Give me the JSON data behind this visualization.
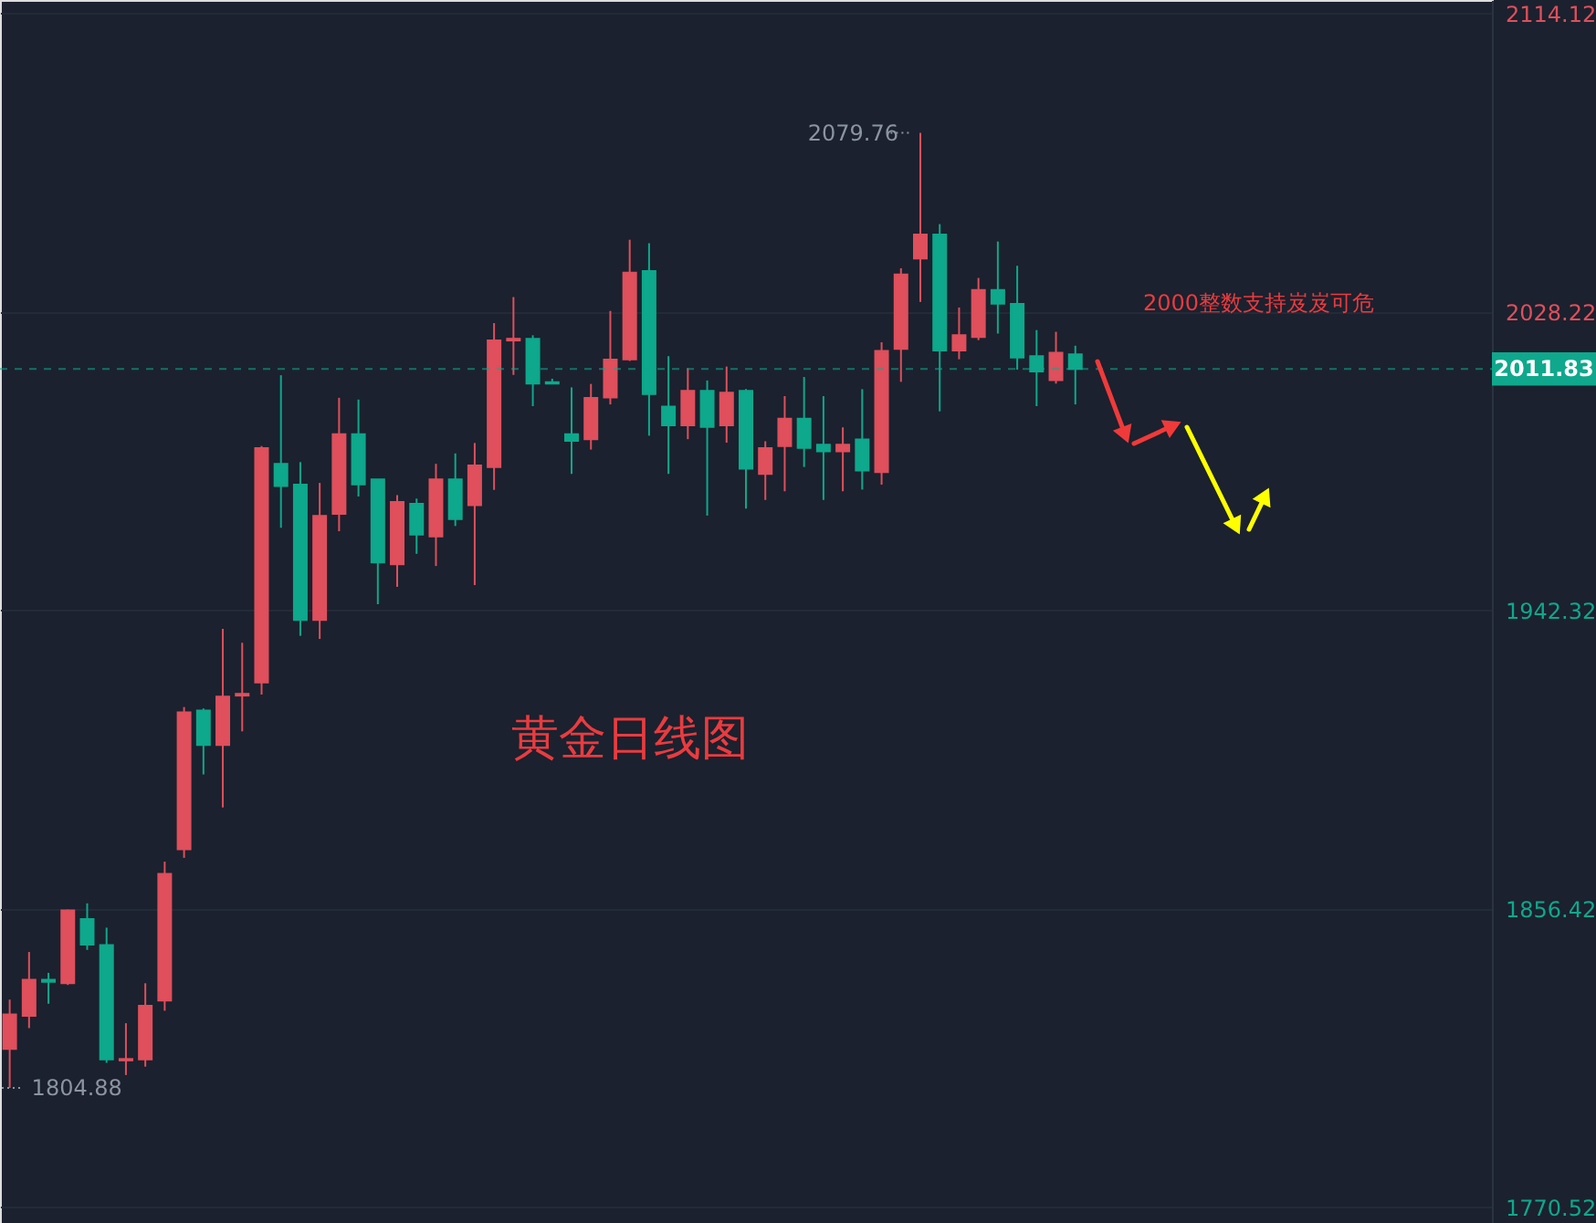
{
  "chart_data": {
    "type": "candlestick",
    "categories": [
      null,
      null,
      null,
      null,
      null,
      null,
      null,
      null,
      null,
      null,
      null,
      null,
      null,
      null,
      null,
      null,
      null,
      null,
      null,
      null,
      null,
      null,
      null,
      null,
      null,
      null,
      null,
      null,
      null,
      null,
      null,
      null,
      null,
      null,
      null,
      null,
      null,
      null,
      null,
      null,
      null,
      null,
      null,
      null,
      null,
      null,
      null,
      null,
      null,
      null,
      null,
      null,
      null,
      null,
      null,
      null,
      null,
      null,
      null,
      null,
      null,
      null,
      null,
      null,
      null,
      null,
      null,
      null,
      null,
      null,
      null,
      null,
      null,
      null,
      null,
      null,
      null
    ],
    "ohlc": [
      [
        1816.1,
        1830.3,
        1804.88,
        1826.0
      ],
      [
        1825.6,
        1844.0,
        1822.1,
        1836.0
      ],
      [
        1836.0,
        1838.0,
        1829.1,
        1835.4
      ],
      [
        1835.0,
        1856.2,
        1834.5,
        1856.0
      ],
      [
        1853.5,
        1858.0,
        1844.6,
        1846.1
      ],
      [
        1846.0,
        1851.0,
        1812.1,
        1813.1
      ],
      [
        1812.8,
        1823.5,
        1808.6,
        1813.2
      ],
      [
        1813.1,
        1835.0,
        1811.0,
        1828.5
      ],
      [
        1830.0,
        1870.0,
        1827.1,
        1866.5
      ],
      [
        1873.6,
        1914.5,
        1871.1,
        1913.0
      ],
      [
        1913.5,
        1914.1,
        1895.1,
        1903.6
      ],
      [
        1903.6,
        1937.0,
        1885.6,
        1917.5
      ],
      [
        1917.8,
        1933.0,
        1907.5,
        1918.3
      ],
      [
        1921.6,
        1989.6,
        1918.1,
        1989.0
      ],
      [
        1984.5,
        2010.0,
        1966.1,
        1978.1
      ],
      [
        1978.5,
        1985.0,
        1935.0,
        1939.6
      ],
      [
        1939.6,
        1979.0,
        1934.1,
        1969.5
      ],
      [
        1970.1,
        2003.5,
        1965.1,
        1993.0
      ],
      [
        1993.0,
        2003.0,
        1975.1,
        1978.6
      ],
      [
        1980.0,
        1980.0,
        1944.1,
        1956.1
      ],
      [
        1955.6,
        1975.5,
        1949.1,
        1973.5
      ],
      [
        1973.0,
        1974.5,
        1958.6,
        1964.1
      ],
      [
        1963.6,
        1984.5,
        1955.1,
        1980.0
      ],
      [
        1980.0,
        1987.5,
        1966.6,
        1968.6
      ],
      [
        1972.6,
        1990.5,
        1949.6,
        1984.0
      ],
      [
        1983.6,
        2025.0,
        1977.0,
        2020.0
      ],
      [
        2020.0,
        2032.5,
        2010.1,
        2020.5
      ],
      [
        2020.5,
        2021.5,
        2001.1,
        2007.6
      ],
      [
        2008.0,
        2009.0,
        2007.4,
        2007.6
      ],
      [
        1993.0,
        2006.5,
        1981.6,
        1991.1
      ],
      [
        1991.6,
        2007.5,
        1988.6,
        2003.5
      ],
      [
        2003.6,
        2028.5,
        2001.6,
        2014.5
      ],
      [
        2014.6,
        2049.0,
        2014.1,
        2039.5
      ],
      [
        2040.0,
        2048.0,
        1992.6,
        2004.6
      ],
      [
        2001.0,
        2015.5,
        1981.6,
        1995.6
      ],
      [
        1995.6,
        2012.0,
        1991.6,
        2005.5
      ],
      [
        2005.5,
        2008.5,
        1969.6,
        1995.1
      ],
      [
        1995.6,
        2012.5,
        1990.6,
        2005.0
      ],
      [
        2005.5,
        2006.0,
        1971.6,
        1983.1
      ],
      [
        1981.6,
        1991.0,
        1974.1,
        1989.0
      ],
      [
        1989.6,
        2004.0,
        1976.6,
        1997.5
      ],
      [
        1997.5,
        2009.5,
        1983.6,
        1989.1
      ],
      [
        1990.0,
        2004.0,
        1974.1,
        1988.1
      ],
      [
        1988.1,
        1995.0,
        1976.6,
        1990.0
      ],
      [
        1991.5,
        2006.0,
        1977.1,
        1982.6
      ],
      [
        1982.1,
        2019.5,
        1978.5,
        2017.0
      ],
      [
        2017.6,
        2040.8,
        2008.1,
        2039.0
      ],
      [
        2043.6,
        2079.76,
        2031.1,
        2050.5
      ],
      [
        2050.5,
        2053.5,
        1999.6,
        2017.1
      ],
      [
        2017.1,
        2029.5,
        2014.6,
        2021.5
      ],
      [
        2021.0,
        2038.0,
        2020.1,
        2034.5
      ],
      [
        2034.5,
        2048.5,
        2022.0,
        2030.6
      ],
      [
        2030.5,
        2041.5,
        2011.6,
        2015.1
      ],
      [
        2015.5,
        2023.0,
        2001.1,
        2011.1
      ],
      [
        2008.6,
        2022.5,
        2007.6,
        2016.5
      ],
      [
        2016.0,
        2018.5,
        2001.6,
        2011.83
      ],
      null,
      null,
      null,
      null,
      null,
      null,
      null,
      null,
      null,
      null,
      null,
      null,
      null,
      null,
      null,
      null,
      null,
      null,
      null,
      null,
      null
    ],
    "colors": [
      "#df4f5c",
      "#df4f5c",
      "#0ea88c",
      "#df4f5c",
      "#0ea88c",
      "#0ea88c",
      "#df4f5c",
      "#df4f5c",
      "#df4f5c",
      "#df4f5c",
      "#0ea88c",
      "#df4f5c",
      "#df4f5c",
      "#df4f5c",
      "#0ea88c",
      "#0ea88c",
      "#df4f5c",
      "#df4f5c",
      "#0ea88c",
      "#0ea88c",
      "#df4f5c",
      "#0ea88c",
      "#df4f5c",
      "#0ea88c",
      "#df4f5c",
      "#df4f5c",
      "#df4f5c",
      "#0ea88c",
      "#0ea88c",
      "#0ea88c",
      "#df4f5c",
      "#df4f5c",
      "#df4f5c",
      "#0ea88c",
      "#0ea88c",
      "#df4f5c",
      "#0ea88c",
      "#df4f5c",
      "#0ea88c",
      "#df4f5c",
      "#df4f5c",
      "#0ea88c",
      "#0ea88c",
      "#df4f5c",
      "#0ea88c",
      "#df4f5c",
      "#df4f5c",
      "#df4f5c",
      "#0ea88c",
      "#df4f5c",
      "#df4f5c",
      "#0ea88c",
      "#0ea88c",
      "#0ea88c",
      "#df4f5c",
      "#0ea88c",
      null,
      null,
      null,
      null,
      null,
      null,
      null,
      null,
      null,
      null,
      null,
      null,
      null,
      null,
      null,
      null,
      null,
      null,
      null,
      null,
      null
    ],
    "ylim": [
      1766,
      2118
    ],
    "yticks": [
      1770.52,
      1856.42,
      1942.32,
      2028.22,
      2114.12
    ],
    "ref_lines": [
      {
        "axis": "y",
        "value": 2011.83,
        "label": "2011.83",
        "color": "#0fa88c",
        "line_style": "dashed"
      }
    ],
    "annotations": [
      "2079.76",
      "1804.88",
      "2000整数支持岌岌可危",
      "黄金日线图"
    ],
    "grid": "y",
    "tick_labels": "y"
  }
}
